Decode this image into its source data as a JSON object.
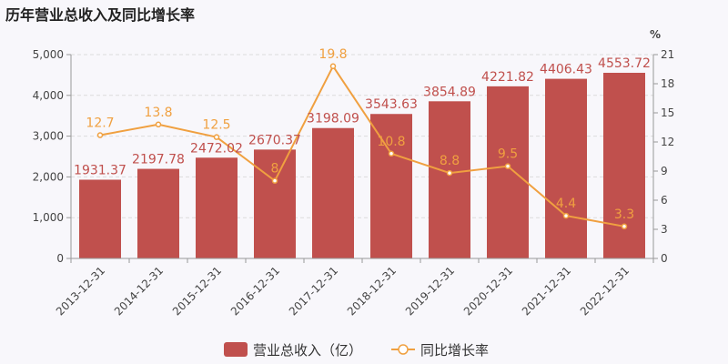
{
  "chart_data": {
    "type": "bar",
    "title": "历年营业总收入及同比增长率",
    "categories": [
      "2013-12-31",
      "2014-12-31",
      "2015-12-31",
      "2016-12-31",
      "2017-12-31",
      "2018-12-31",
      "2019-12-31",
      "2020-12-31",
      "2021-12-31",
      "2022-12-31"
    ],
    "series": [
      {
        "name": "营业总收入（亿）",
        "type": "bar",
        "axis": "left",
        "color": "#c0504d",
        "values": [
          1931.37,
          2197.78,
          2472.02,
          2670.37,
          3198.09,
          3543.63,
          3854.89,
          4221.82,
          4406.43,
          4553.72
        ],
        "labels": [
          "1931.37",
          "2197.78",
          "2472.02",
          "2670.37",
          "3198.09",
          "3543.63",
          "3854.89",
          "4221.82",
          "4406.43",
          "4553.72"
        ]
      },
      {
        "name": "同比增长率",
        "type": "line",
        "axis": "right",
        "color": "#f0a040",
        "values": [
          12.7,
          13.8,
          12.5,
          8,
          19.8,
          10.8,
          8.8,
          9.5,
          4.4,
          3.3
        ],
        "labels": [
          "12.7",
          "13.8",
          "12.5",
          "8",
          "19.8",
          "10.8",
          "8.8",
          "9.5",
          "4.4",
          "3.3"
        ]
      }
    ],
    "y_left": {
      "min": 0,
      "max": 5000,
      "ticks": [
        "0",
        "1,000",
        "2,000",
        "3,000",
        "4,000",
        "5,000"
      ],
      "tick_values": [
        0,
        1000,
        2000,
        3000,
        4000,
        5000
      ]
    },
    "y_right": {
      "min": 0,
      "max": 21,
      "unit": "%",
      "ticks": [
        "0",
        "3",
        "6",
        "9",
        "12",
        "15",
        "18",
        "21"
      ],
      "tick_values": [
        0,
        3,
        6,
        9,
        12,
        15,
        18,
        21
      ]
    },
    "grid": true,
    "legend": "bottom-center"
  }
}
